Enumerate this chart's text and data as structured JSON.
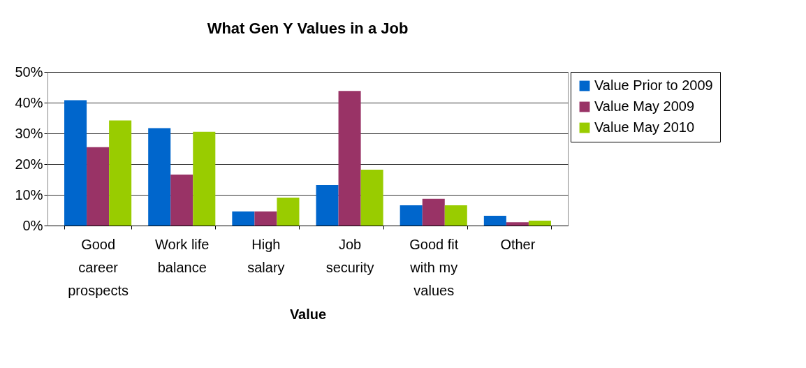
{
  "chart_data": {
    "type": "bar",
    "title": "What Gen Y Values in a Job",
    "xlabel": "Value",
    "categories": [
      "Good career prospects",
      "Work life balance",
      "High salary",
      "Job security",
      "Good fit with my values",
      "Other"
    ],
    "series": [
      {
        "name": "Value Prior to 2009",
        "color": "#0066cc",
        "values": [
          40.8,
          31.7,
          4.6,
          13.2,
          6.6,
          3.2
        ]
      },
      {
        "name": "Value May 2009",
        "color": "#993366",
        "values": [
          25.5,
          16.6,
          4.6,
          43.8,
          8.7,
          1.1
        ]
      },
      {
        "name": "Value May 2010",
        "color": "#99cc00",
        "values": [
          34.2,
          30.5,
          9.1,
          18.2,
          6.6,
          1.6
        ]
      }
    ],
    "ylim": [
      0,
      50
    ],
    "yticks": [
      {
        "value": 0,
        "label": "0%"
      },
      {
        "value": 10,
        "label": "10%"
      },
      {
        "value": 20,
        "label": "20%"
      },
      {
        "value": 30,
        "label": "30%"
      },
      {
        "value": 40,
        "label": "40%"
      },
      {
        "value": 50,
        "label": "50%"
      }
    ],
    "grid": "y",
    "legend": "right"
  }
}
